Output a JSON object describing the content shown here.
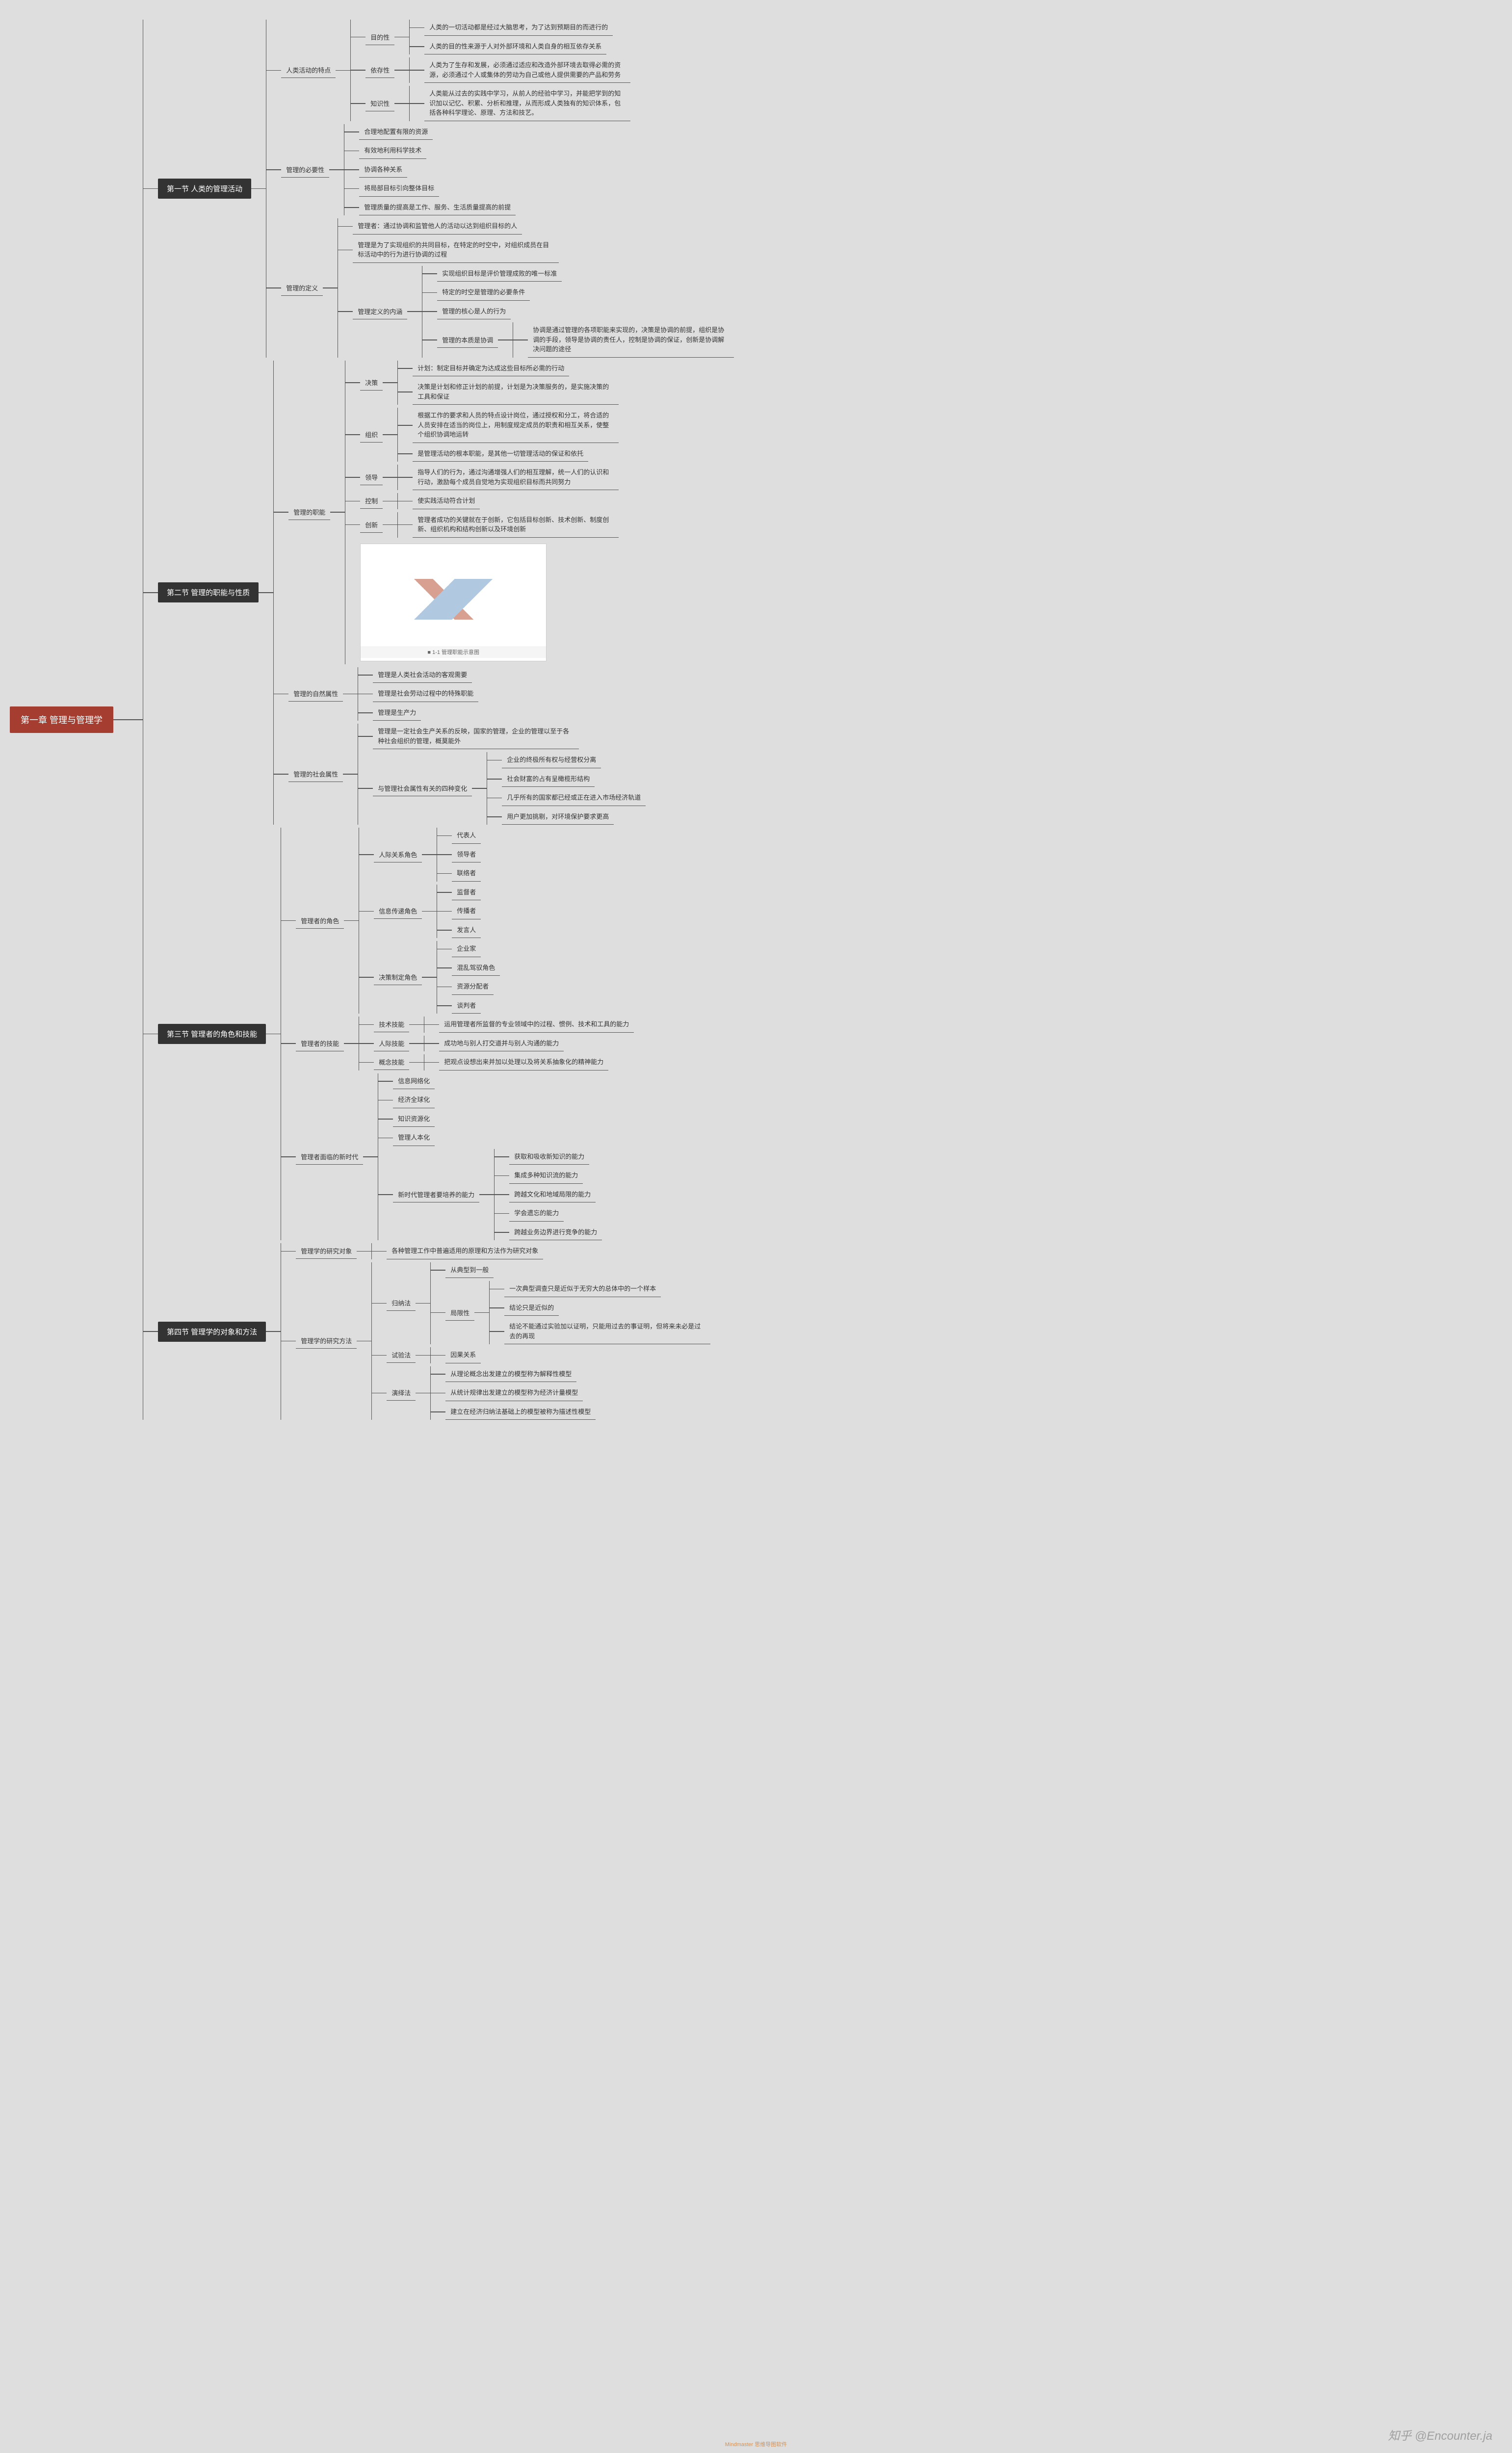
{
  "colors": {
    "background": "#dedede",
    "root_bg": "#a63d31",
    "dark_bg": "#333333",
    "line": "#555555",
    "text": "#333333",
    "light_text": "#ffffff"
  },
  "typography": {
    "root_fontsize": 18,
    "section_fontsize": 15,
    "leaf_fontsize": 13,
    "font_family": "Microsoft YaHei"
  },
  "watermark": "知乎 @Encounter.ja",
  "watermark_small": "Mindmaster 思维导图软件",
  "image_caption": "■ 1-1 管理职能示意图",
  "root": {
    "label": "第一章 管理与管理学",
    "children": [
      {
        "label": "第一节 人类的管理活动",
        "children": [
          {
            "label": "人类活动的特点",
            "children": [
              {
                "label": "目的性",
                "children": [
                  {
                    "leaf": "人类的一切活动都是经过大脑思考，为了达到预期目的而进行的"
                  },
                  {
                    "leaf": "人类的目的性来源于人对外部环境和人类自身的相互依存关系"
                  }
                ]
              },
              {
                "label": "依存性",
                "children": [
                  {
                    "leaf": "人类为了生存和发展，必须通过适应和改造外部环境去取得必需的资源，必须通过个人或集体的劳动为自己或他人提供需要的产品和劳务"
                  }
                ]
              },
              {
                "label": "知识性",
                "children": [
                  {
                    "leaf": "人类能从过去的实践中学习，从前人的经验中学习，并能把学到的知识加以记忆、积累、分析和推理，从而形成人类独有的知识体系，包括各种科学理论、原理、方法和技艺。"
                  }
                ]
              }
            ]
          },
          {
            "label": "管理的必要性",
            "children": [
              {
                "leaf": "合理地配置有限的资源"
              },
              {
                "leaf": "有效地利用科学技术"
              },
              {
                "leaf": "协调各种关系"
              },
              {
                "leaf": "将局部目标引向整体目标"
              },
              {
                "leaf": "管理质量的提高是工作、服务、生活质量提高的前提"
              }
            ]
          },
          {
            "label": "管理的定义",
            "children": [
              {
                "leaf": "管理者：通过协调和监管他人的活动以达到组织目标的人"
              },
              {
                "leaf": "管理是为了实现组织的共同目标，在特定的时空中，对组织成员在目标活动中的行为进行协调的过程"
              },
              {
                "label": "管理定义的内涵",
                "children": [
                  {
                    "leaf": "实现组织目标是评价管理成败的唯一标准"
                  },
                  {
                    "leaf": "特定的时空是管理的必要条件"
                  },
                  {
                    "leaf": "管理的核心是人的行为"
                  },
                  {
                    "label": "管理的本质是协调",
                    "children": [
                      {
                        "leaf": "协调是通过管理的各项职能来实现的，决策是协调的前提，组织是协调的手段，领导是协调的责任人，控制是协调的保证，创新是协调解决问题的途径"
                      }
                    ]
                  }
                ]
              }
            ]
          }
        ]
      },
      {
        "label": "第二节 管理的职能与性质",
        "children": [
          {
            "label": "管理的职能",
            "children": [
              {
                "label": "决策",
                "children": [
                  {
                    "leaf": "计划：制定目标并确定为达成这些目标所必需的行动"
                  },
                  {
                    "leaf": "决策是计划和修正计划的前提，计划是为决策服务的，是实施决策的工具和保证"
                  }
                ]
              },
              {
                "label": "组织",
                "children": [
                  {
                    "leaf": "根据工作的要求和人员的特点设计岗位，通过授权和分工，将合适的人员安排在适当的岗位上，用制度规定成员的职责和相互关系，使整个组织协调地运转"
                  },
                  {
                    "leaf": "是管理活动的根本职能，是其他一切管理活动的保证和依托"
                  }
                ]
              },
              {
                "label": "领导",
                "children": [
                  {
                    "leaf": "指导人们的行为，通过沟通增强人们的相互理解，统一人们的认识和行动，激励每个成员自觉地为实现组织目标而共同努力"
                  }
                ]
              },
              {
                "label": "控制",
                "children": [
                  {
                    "leaf": "使实践活动符合计划"
                  }
                ]
              },
              {
                "label": "创新",
                "children": [
                  {
                    "leaf": "管理者成功的关键就在于创新，它包括目标创新、技术创新、制度创新、组织机构和结构创新以及环境创新"
                  }
                ]
              },
              {
                "image": true
              }
            ]
          },
          {
            "label": "管理的自然属性",
            "children": [
              {
                "leaf": "管理是人类社会活动的客观需要"
              },
              {
                "leaf": "管理是社会劳动过程中的特殊职能"
              },
              {
                "leaf": "管理是生产力"
              }
            ]
          },
          {
            "label": "管理的社会属性",
            "children": [
              {
                "leaf": "管理是一定社会生产关系的反映，国家的管理，企业的管理以至于各种社会组织的管理，概莫能外"
              },
              {
                "label": "与管理社会属性有关的四种变化",
                "children": [
                  {
                    "leaf": "企业的终极所有权与经营权分离"
                  },
                  {
                    "leaf": "社会财富的占有呈橄榄形结构"
                  },
                  {
                    "leaf": "几乎所有的国家都已经或正在进入市场经济轨道"
                  },
                  {
                    "leaf": "用户更加挑剔，对环境保护要求更高"
                  }
                ]
              }
            ]
          }
        ]
      },
      {
        "label": "第三节 管理者的角色和技能",
        "children": [
          {
            "label": "管理者的角色",
            "children": [
              {
                "label": "人际关系角色",
                "children": [
                  {
                    "leaf": "代表人"
                  },
                  {
                    "leaf": "领导者"
                  },
                  {
                    "leaf": "联络者"
                  }
                ]
              },
              {
                "label": "信息传递角色",
                "children": [
                  {
                    "leaf": "监督者"
                  },
                  {
                    "leaf": "传播者"
                  },
                  {
                    "leaf": "发言人"
                  }
                ]
              },
              {
                "label": "决策制定角色",
                "children": [
                  {
                    "leaf": "企业家"
                  },
                  {
                    "leaf": "混乱驾驭角色"
                  },
                  {
                    "leaf": "资源分配者"
                  },
                  {
                    "leaf": "谈判者"
                  }
                ]
              }
            ]
          },
          {
            "label": "管理者的技能",
            "children": [
              {
                "label": "技术技能",
                "children": [
                  {
                    "leaf": "运用管理者所监督的专业领域中的过程、惯例、技术和工具的能力"
                  }
                ]
              },
              {
                "label": "人际技能",
                "children": [
                  {
                    "leaf": "成功地与别人打交道并与别人沟通的能力"
                  }
                ]
              },
              {
                "label": "概念技能",
                "children": [
                  {
                    "leaf": "把观点设想出来并加以处理以及将关系抽象化的精神能力"
                  }
                ]
              }
            ]
          },
          {
            "label": "管理者面临的新时代",
            "children": [
              {
                "leaf": "信息网络化"
              },
              {
                "leaf": "经济全球化"
              },
              {
                "leaf": "知识资源化"
              },
              {
                "leaf": "管理人本化"
              },
              {
                "label": "新时代管理者要培养的能力",
                "children": [
                  {
                    "leaf": "获取和吸收新知识的能力"
                  },
                  {
                    "leaf": "集成多种知识流的能力"
                  },
                  {
                    "leaf": "跨越文化和地域局限的能力"
                  },
                  {
                    "leaf": "学会遗忘的能力"
                  },
                  {
                    "leaf": "跨越业务边界进行竞争的能力"
                  }
                ]
              }
            ]
          }
        ]
      },
      {
        "label": "第四节 管理学的对象和方法",
        "children": [
          {
            "label": "管理学的研究对象",
            "children": [
              {
                "leaf": "各种管理工作中普遍适用的原理和方法作为研究对象"
              }
            ]
          },
          {
            "label": "管理学的研究方法",
            "children": [
              {
                "label": "归纳法",
                "children": [
                  {
                    "leaf": "从典型到一般"
                  },
                  {
                    "label": "局限性",
                    "children": [
                      {
                        "leaf": "一次典型调查只是近似于无穷大的总体中的一个样本"
                      },
                      {
                        "leaf": "结论只是近似的"
                      },
                      {
                        "leaf": "结论不能通过实验加以证明，只能用过去的事证明，但将来未必是过去的再现"
                      }
                    ]
                  }
                ]
              },
              {
                "label": "试验法",
                "children": [
                  {
                    "leaf": "因果关系"
                  }
                ]
              },
              {
                "label": "演绎法",
                "children": [
                  {
                    "leaf": "从理论概念出发建立的模型称为解释性模型"
                  },
                  {
                    "leaf": "从统计规律出发建立的模型称为经济计量模型"
                  },
                  {
                    "leaf": "建立在经济归纳法基础上的模型被称为描述性模型"
                  }
                ]
              }
            ]
          }
        ]
      }
    ]
  }
}
